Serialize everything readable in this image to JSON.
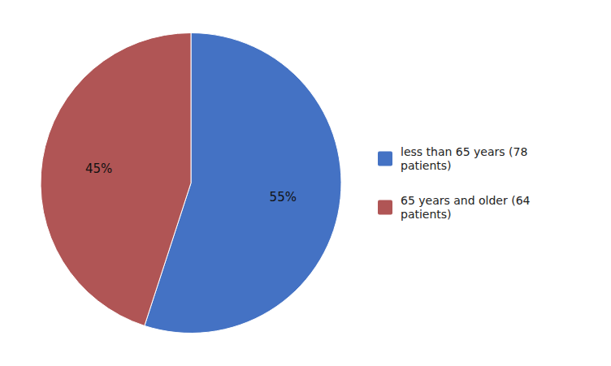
{
  "chart_data": {
    "type": "pie",
    "categories": [
      "less than 65 years (78\n patients)",
      "65 years and older (64\n patients)"
    ],
    "values": [
      55,
      45
    ],
    "value_labels": [
      "55%",
      "45%"
    ],
    "colors": [
      "#4472c4",
      "#b05555"
    ],
    "data_labels": true,
    "legend": "right"
  }
}
